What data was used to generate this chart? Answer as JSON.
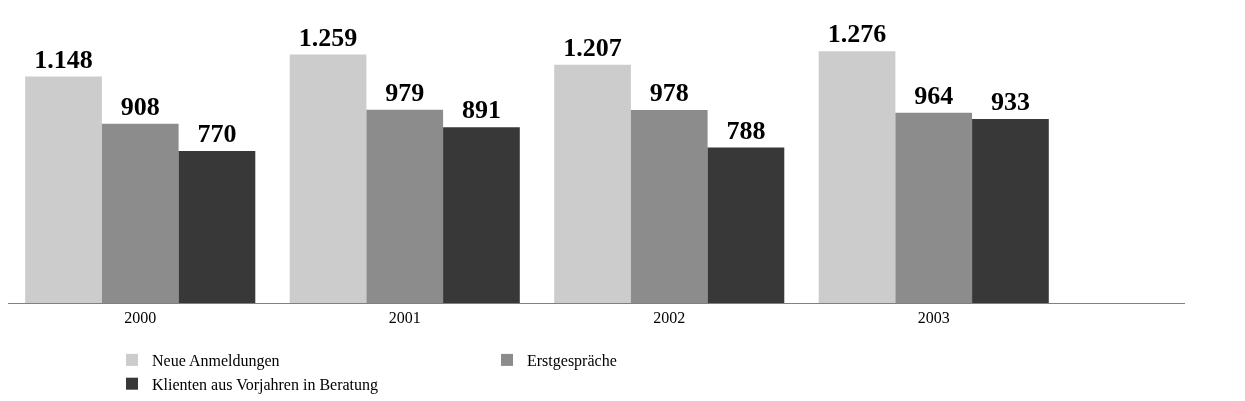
{
  "chart_data": {
    "type": "bar",
    "categories": [
      "2000",
      "2001",
      "2002",
      "2003"
    ],
    "series": [
      {
        "name": "Neue Anmeldungen",
        "color": "#cccccc",
        "values": [
          1148,
          1259,
          1207,
          1276
        ],
        "value_labels": [
          "1.148",
          "1.259",
          "1.207",
          "1.276"
        ]
      },
      {
        "name": "Erstgespräche",
        "color": "#8c8c8c",
        "values": [
          908,
          979,
          978,
          964
        ],
        "value_labels": [
          "908",
          "979",
          "978",
          "964"
        ]
      },
      {
        "name": "Klienten aus Vorjahren in Beratung",
        "color": "#383838",
        "values": [
          770,
          891,
          788,
          933
        ],
        "value_labels": [
          "770",
          "891",
          "788",
          "933"
        ]
      }
    ],
    "legend": "bottom"
  }
}
